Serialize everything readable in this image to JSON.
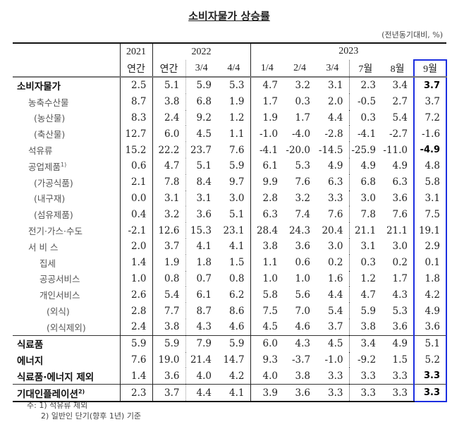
{
  "title": "소비자물가 상승률",
  "unit": "(전년동기대비, %)",
  "header": {
    "years": [
      "2021",
      "2022",
      "2023"
    ],
    "periods": [
      "연간",
      "연간",
      "3/4",
      "4/4",
      "1/4",
      "2/4",
      "3/4",
      "7월",
      "8월",
      "9월"
    ]
  },
  "rows": [
    {
      "label": "소비자물가",
      "values": [
        "2.5",
        "5.1",
        "5.9",
        "5.3",
        "4.7",
        "3.2",
        "3.1",
        "2.3",
        "3.4",
        "3.7"
      ]
    },
    {
      "label": "농축수산물",
      "values": [
        "8.7",
        "3.8",
        "6.8",
        "1.9",
        "1.7",
        "0.3",
        "2.0",
        "-0.5",
        "2.7",
        "3.7"
      ]
    },
    {
      "label": "(농산물)",
      "values": [
        "8.3",
        "2.4",
        "9.2",
        "1.2",
        "1.9",
        "1.7",
        "4.4",
        "0.3",
        "5.4",
        "7.2"
      ]
    },
    {
      "label": "(축산물)",
      "values": [
        "12.7",
        "6.0",
        "4.5",
        "1.1",
        "-1.0",
        "-4.0",
        "-2.8",
        "-4.1",
        "-2.7",
        "-1.6"
      ]
    },
    {
      "label": "석유류",
      "values": [
        "15.2",
        "22.2",
        "23.7",
        "7.6",
        "-4.1",
        "-20.0",
        "-14.5",
        "-25.9",
        "-11.0",
        "-4.9"
      ]
    },
    {
      "label": "공업제품",
      "sup": "1)",
      "values": [
        "0.6",
        "4.7",
        "5.1",
        "5.9",
        "6.1",
        "5.3",
        "4.9",
        "4.9",
        "4.9",
        "4.8"
      ]
    },
    {
      "label": "(가공식품)",
      "values": [
        "2.1",
        "7.8",
        "8.4",
        "9.7",
        "9.9",
        "7.6",
        "6.3",
        "6.8",
        "6.3",
        "5.8"
      ]
    },
    {
      "label": "(내구재)",
      "values": [
        "0.0",
        "3.1",
        "3.1",
        "3.0",
        "2.8",
        "3.2",
        "3.3",
        "3.0",
        "3.6",
        "3.1"
      ]
    },
    {
      "label": "(섬유제품)",
      "values": [
        "0.4",
        "3.2",
        "3.6",
        "5.1",
        "6.3",
        "7.4",
        "7.6",
        "7.8",
        "7.6",
        "7.5"
      ]
    },
    {
      "label": "전기·가스·수도",
      "values": [
        "-2.1",
        "12.6",
        "15.3",
        "23.1",
        "28.4",
        "24.3",
        "20.4",
        "21.1",
        "21.1",
        "19.1"
      ]
    },
    {
      "label": "서 비 스",
      "values": [
        "2.0",
        "3.7",
        "4.1",
        "4.1",
        "3.8",
        "3.6",
        "3.0",
        "3.1",
        "3.0",
        "2.9"
      ]
    },
    {
      "label": "집세",
      "values": [
        "1.4",
        "1.9",
        "1.8",
        "1.5",
        "1.1",
        "0.6",
        "0.2",
        "0.3",
        "0.2",
        "0.1"
      ]
    },
    {
      "label": "공공서비스",
      "values": [
        "1.0",
        "0.8",
        "0.7",
        "0.8",
        "1.0",
        "1.0",
        "1.6",
        "1.2",
        "1.7",
        "1.8"
      ]
    },
    {
      "label": "개인서비스",
      "values": [
        "2.6",
        "5.4",
        "6.1",
        "6.2",
        "5.8",
        "5.6",
        "4.4",
        "4.7",
        "4.3",
        "4.2"
      ]
    },
    {
      "label": "(외식)",
      "values": [
        "2.8",
        "7.7",
        "8.7",
        "8.6",
        "7.5",
        "7.0",
        "5.4",
        "5.9",
        "5.3",
        "4.9"
      ]
    },
    {
      "label": "(외식제외)",
      "values": [
        "2.4",
        "3.8",
        "4.3",
        "4.6",
        "4.5",
        "4.6",
        "3.7",
        "3.8",
        "3.6",
        "3.6"
      ]
    },
    {
      "label": "식료품",
      "values": [
        "5.9",
        "5.9",
        "7.9",
        "5.9",
        "6.0",
        "4.3",
        "4.5",
        "3.4",
        "4.9",
        "5.1"
      ]
    },
    {
      "label": "에너지",
      "values": [
        "7.6",
        "19.0",
        "21.4",
        "14.7",
        "9.3",
        "-3.7",
        "-1.0",
        "-9.2",
        "1.5",
        "5.2"
      ]
    },
    {
      "label": "식료품·에너지 제외",
      "values": [
        "1.4",
        "3.6",
        "4.0",
        "4.2",
        "4.0",
        "3.8",
        "3.3",
        "3.3",
        "3.3",
        "3.3"
      ]
    },
    {
      "label": "기대인플레이션",
      "sup": "2)",
      "values": [
        "2.3",
        "3.7",
        "4.4",
        "4.1",
        "3.9",
        "3.6",
        "3.3",
        "3.3",
        "3.3",
        "3.3"
      ]
    }
  ],
  "notes": [
    "주: 1) 석유류 제외",
    "2) 일반인 단기(향후 1년) 기준"
  ],
  "colors": {
    "highlight_border": "#1c2fe0"
  }
}
